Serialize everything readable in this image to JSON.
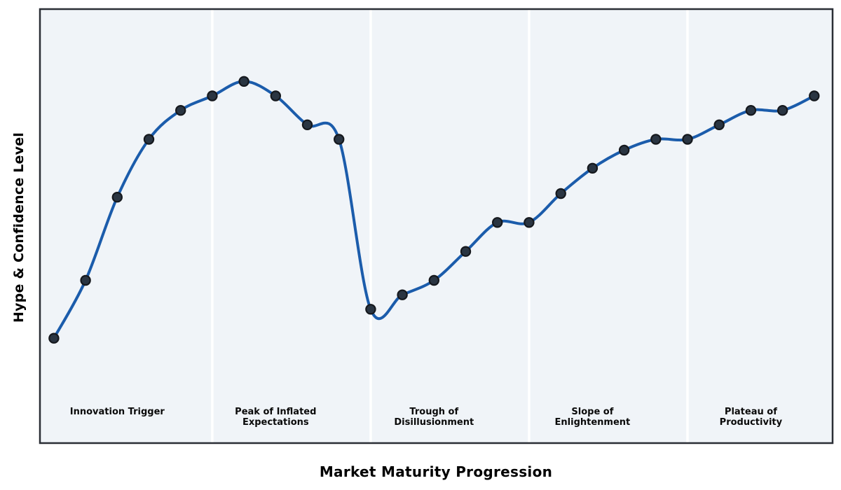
{
  "figure": {
    "background": "#ffffff",
    "plot_background": "#f0f4f8",
    "frame_color": "#2a2e35",
    "gridline_color": "#ffffff"
  },
  "chart_data": {
    "type": "line",
    "title": "",
    "xlabel": "Market Maturity Progression",
    "ylabel": "Hype & Confidence Level",
    "x": [
      0,
      1,
      2,
      3,
      4,
      5,
      6,
      7,
      8,
      9,
      10,
      11,
      12,
      13,
      14,
      15,
      16,
      17,
      18,
      19,
      20,
      21,
      22,
      23,
      24
    ],
    "values": [
      19,
      35,
      58,
      74,
      82,
      86,
      90,
      86,
      78,
      74,
      27,
      31,
      35,
      43,
      51,
      51,
      59,
      66,
      71,
      74,
      74,
      78,
      82,
      82,
      86
    ],
    "xlim": [
      -0.44,
      24.58
    ],
    "ylim": [
      -10,
      110
    ],
    "ticks": "none",
    "grid": "vertical white phase-boundary lines only",
    "legend": "none",
    "smoothing": "cubic spline through all points",
    "line_color": "#1b5cab",
    "line_width": 4,
    "marker_color": "#2a3542",
    "marker_edge_color": "#15181d",
    "marker_radius": 6.6,
    "phases": [
      {
        "label": "Innovation Trigger",
        "start_x": 0,
        "end_x": 5,
        "label_x": 2
      },
      {
        "label": "Peak of Inflated\nExpectations",
        "start_x": 5,
        "end_x": 10,
        "label_x": 7
      },
      {
        "label": "Trough of\nDisillusionment",
        "start_x": 10,
        "end_x": 15,
        "label_x": 12
      },
      {
        "label": "Slope of\nEnlightenment",
        "start_x": 15,
        "end_x": 20,
        "label_x": 17
      },
      {
        "label": "Plateau of\nProductivity",
        "start_x": 20,
        "end_x": 24,
        "label_x": 22
      }
    ]
  }
}
